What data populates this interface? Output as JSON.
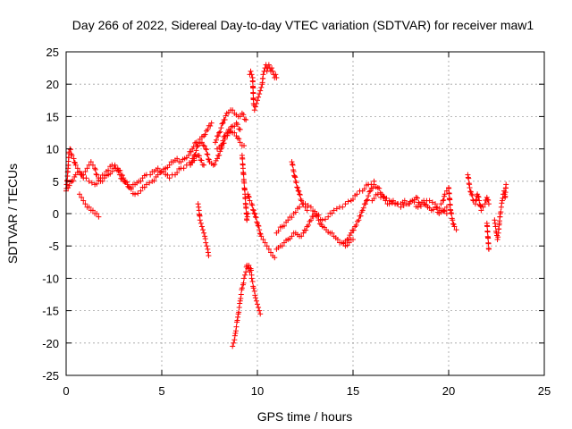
{
  "chart_data": {
    "type": "scatter",
    "title": "Day 266 of 2022, Sidereal Day-to-day VTEC variation (SDTVAR) for receiver maw1",
    "xlabel": "GPS time / hours",
    "ylabel": "SDTVAR / TECUs",
    "xlim": [
      0,
      25
    ],
    "ylim": [
      -25,
      25
    ],
    "xticks": [
      0,
      5,
      10,
      15,
      20,
      25
    ],
    "yticks": [
      -25,
      -20,
      -15,
      -10,
      -5,
      0,
      5,
      10,
      15,
      20,
      25
    ],
    "grid": true,
    "marker": "+",
    "series": [
      {
        "name": "maw1",
        "color": "#ff0000",
        "segments": [
          {
            "x": [
              0.0,
              0.05,
              0.1,
              0.15,
              0.2,
              0.3,
              0.4,
              0.5,
              0.6,
              0.7,
              0.8,
              0.9,
              1.0,
              1.1,
              1.2,
              1.3,
              1.4,
              1.5,
              1.6,
              1.7,
              1.8,
              1.9,
              2.0,
              2.2,
              2.4,
              2.6,
              2.8,
              3.0,
              3.2,
              3.4,
              3.6,
              3.8,
              4.0,
              4.2,
              4.4,
              4.6,
              4.8,
              5.0,
              5.2,
              5.4,
              5.6,
              5.8,
              6.0,
              6.2,
              6.4,
              6.6,
              6.8,
              7.0,
              7.2,
              7.4,
              7.6
            ],
            "y": [
              3.5,
              5.0,
              7.0,
              9.5,
              10.0,
              9.0,
              8.5,
              7.5,
              7.0,
              6.5,
              6.0,
              6.0,
              6.5,
              7.0,
              7.5,
              8.0,
              7.5,
              7.0,
              6.0,
              5.5,
              5.0,
              5.0,
              5.5,
              6.0,
              6.5,
              7.0,
              6.0,
              5.0,
              4.5,
              4.0,
              4.5,
              5.0,
              5.5,
              6.0,
              6.0,
              6.5,
              7.0,
              6.5,
              7.0,
              7.5,
              8.0,
              8.5,
              8.0,
              8.5,
              9.0,
              10.0,
              11.0,
              11.5,
              12.0,
              13.0,
              14.0
            ]
          },
          {
            "x": [
              0.1,
              0.3,
              0.5,
              0.7,
              0.9,
              1.2,
              1.5,
              1.8,
              2.1,
              2.4,
              2.7,
              3.0,
              3.3,
              3.6,
              3.9,
              4.2,
              4.5,
              4.8,
              5.1,
              5.4,
              5.7,
              6.0,
              6.3,
              6.6,
              6.9,
              7.2
            ],
            "y": [
              4.0,
              5.0,
              6.0,
              6.5,
              5.5,
              5.0,
              4.5,
              5.5,
              6.5,
              7.5,
              7.0,
              5.5,
              4.0,
              3.0,
              3.5,
              4.5,
              5.0,
              6.0,
              6.5,
              5.5,
              6.0,
              7.0,
              7.5,
              8.0,
              9.0,
              7.5
            ]
          },
          {
            "x": [
              6.5,
              6.7,
              6.9,
              7.1,
              7.3,
              7.5,
              7.7,
              7.9,
              8.1,
              8.3,
              8.5,
              8.7,
              8.9,
              9.1
            ],
            "y": [
              7.5,
              9.0,
              10.5,
              11.0,
              10.0,
              8.0,
              7.5,
              8.5,
              10.0,
              11.5,
              12.5,
              13.5,
              14.0,
              13.0
            ]
          },
          {
            "x": [
              7.8,
              8.0,
              8.2,
              8.4,
              8.6,
              8.8,
              9.0,
              9.2,
              9.4
            ],
            "y": [
              11.0,
              12.5,
              14.0,
              15.5,
              16.0,
              15.5,
              15.0,
              15.5,
              14.5
            ]
          },
          {
            "x": [
              7.9,
              8.1,
              8.3,
              8.5,
              8.7,
              8.9,
              9.1,
              9.3
            ],
            "y": [
              10.0,
              10.5,
              12.0,
              13.0,
              12.5,
              12.0,
              11.0,
              10.5
            ]
          },
          {
            "x": [
              9.2,
              9.25,
              9.3,
              9.35,
              9.4,
              9.45,
              9.5
            ],
            "y": [
              9.0,
              7.0,
              5.0,
              3.0,
              1.0,
              -1.0,
              0.0
            ]
          },
          {
            "x": [
              0.7,
              0.8,
              0.9,
              1.0,
              1.1,
              1.2,
              1.3,
              1.4,
              1.5,
              1.6,
              1.7
            ],
            "y": [
              3.0,
              2.5,
              2.0,
              1.5,
              1.0,
              1.0,
              0.5,
              0.5,
              0.0,
              0.0,
              -0.5
            ]
          },
          {
            "x": [
              6.9,
              6.95,
              7.0,
              7.05,
              7.1,
              7.15,
              7.2,
              7.25,
              7.3,
              7.35,
              7.4,
              7.45
            ],
            "y": [
              1.5,
              0.5,
              -1.0,
              -1.5,
              -2.0,
              -2.5,
              -3.0,
              -3.5,
              -4.5,
              -5.0,
              -5.5,
              -6.5
            ]
          },
          {
            "x": [
              8.7,
              8.75,
              8.8,
              8.85,
              8.9,
              8.95,
              9.0,
              9.05,
              9.1,
              9.15,
              9.2,
              9.25,
              9.3,
              9.35,
              9.4,
              9.45,
              9.5,
              9.55,
              9.6,
              9.65,
              9.7
            ],
            "y": [
              -20.5,
              -20.0,
              -19.5,
              -18.5,
              -17.5,
              -16.5,
              -15.5,
              -14.5,
              -13.5,
              -12.5,
              -11.5,
              -11.0,
              -10.0,
              -9.5,
              -9.0,
              -8.0,
              -8.5,
              -8.0,
              -9.0,
              -8.5,
              -9.5
            ]
          },
          {
            "x": [
              9.7,
              9.75,
              9.8,
              9.85,
              9.9,
              9.95,
              10.0,
              10.05,
              10.1,
              10.15
            ],
            "y": [
              -10.0,
              -10.5,
              -11.5,
              -12.0,
              -13.0,
              -13.5,
              -14.0,
              -14.5,
              -15.0,
              -15.5
            ]
          },
          {
            "x": [
              9.5,
              9.6,
              9.7,
              9.8,
              9.9,
              10.0,
              10.1,
              10.2,
              10.3,
              10.4,
              10.5,
              10.6,
              10.7,
              10.8,
              10.9
            ],
            "y": [
              3.0,
              2.0,
              1.5,
              0.5,
              -0.5,
              -1.5,
              -2.5,
              -3.5,
              -4.0,
              -4.5,
              -5.0,
              -5.5,
              -6.0,
              -6.5,
              -6.8
            ]
          },
          {
            "x": [
              9.6,
              9.65,
              9.7,
              9.75,
              9.8,
              9.85,
              9.9,
              9.95,
              10.0,
              10.05,
              10.1,
              10.15,
              10.2,
              10.25,
              10.3,
              10.35,
              10.4,
              10.45,
              10.5
            ],
            "y": [
              21.5,
              22.0,
              21.5,
              21.0,
              17.0,
              16.0,
              16.5,
              17.0,
              17.5,
              18.0,
              18.5,
              19.0,
              19.5,
              20.0,
              21.5,
              22.0,
              22.5,
              23.0,
              22.5
            ]
          },
          {
            "x": [
              10.5,
              10.55,
              10.6,
              10.65,
              10.7,
              10.75,
              10.8,
              10.85,
              10.9,
              10.95,
              11.0
            ],
            "y": [
              22.0,
              22.5,
              23.0,
              22.5,
              22.0,
              22.5,
              22.0,
              21.5,
              21.0,
              21.5,
              21.0
            ]
          },
          {
            "x": [
              11.0,
              11.2,
              11.4,
              11.6,
              11.8,
              12.0,
              12.2,
              12.4,
              12.6,
              12.8,
              13.0,
              13.2,
              13.4,
              13.6,
              13.8,
              14.0,
              14.2,
              14.4,
              14.6,
              14.8,
              15.0
            ],
            "y": [
              -5.5,
              -5.0,
              -4.5,
              -4.0,
              -3.5,
              -3.0,
              -3.5,
              -3.0,
              -2.0,
              -1.0,
              0.0,
              -1.0,
              -2.0,
              -2.5,
              -3.0,
              -3.5,
              -4.0,
              -4.5,
              -5.0,
              -4.5,
              -4.0
            ]
          },
          {
            "x": [
              11.0,
              11.3,
              11.6,
              11.9,
              12.2,
              12.5,
              12.8,
              13.1,
              13.4,
              13.7,
              14.0,
              14.3,
              14.6,
              14.9,
              15.2,
              15.5,
              15.8,
              16.1
            ],
            "y": [
              -3.0,
              -2.0,
              -1.0,
              0.0,
              1.0,
              1.5,
              1.0,
              0.0,
              -1.0,
              -0.5,
              0.5,
              1.0,
              1.5,
              2.0,
              3.0,
              3.5,
              4.5,
              5.0
            ]
          },
          {
            "x": [
              11.8,
              11.9,
              12.0,
              12.1,
              12.2,
              12.3,
              12.4,
              12.5,
              12.6
            ],
            "y": [
              8.0,
              6.5,
              5.0,
              4.0,
              3.0,
              2.0,
              1.5,
              1.0,
              0.5
            ]
          },
          {
            "x": [
              14.5,
              14.7,
              14.9,
              15.1,
              15.3,
              15.5,
              15.7,
              15.9,
              16.1,
              16.3,
              16.5,
              16.7,
              16.9,
              17.1,
              17.3,
              17.5,
              17.7,
              17.9,
              18.1,
              18.3,
              18.5,
              18.7,
              18.9,
              19.1,
              19.3,
              19.5,
              19.7,
              19.9
            ],
            "y": [
              -4.5,
              -4.0,
              -3.0,
              -2.0,
              -1.0,
              0.5,
              2.0,
              3.5,
              4.5,
              4.0,
              3.0,
              2.0,
              1.5,
              2.0,
              1.5,
              1.5,
              2.0,
              1.5,
              2.0,
              2.5,
              1.5,
              2.0,
              1.0,
              0.5,
              1.0,
              0.0,
              0.5,
              1.0
            ]
          },
          {
            "x": [
              16.0,
              16.3,
              16.6,
              16.9,
              17.2,
              17.5,
              17.8,
              18.1,
              18.4,
              18.7,
              19.0,
              19.3,
              19.6,
              19.9
            ],
            "y": [
              2.0,
              3.0,
              2.5,
              2.0,
              1.5,
              1.0,
              1.5,
              2.0,
              1.0,
              1.5,
              2.0,
              1.5,
              0.5,
              0.0
            ]
          },
          {
            "x": [
              19.6,
              19.7,
              19.8,
              19.9,
              20.0,
              20.1,
              20.2,
              20.3,
              20.4
            ],
            "y": [
              1.5,
              2.0,
              3.0,
              3.5,
              4.0,
              0.5,
              -1.0,
              -2.0,
              -2.5
            ]
          },
          {
            "x": [
              21.0,
              21.1,
              21.2,
              21.3,
              21.4,
              21.5,
              21.6,
              21.7,
              21.8,
              21.9,
              22.0,
              22.1
            ],
            "y": [
              6.0,
              4.0,
              3.0,
              2.0,
              1.5,
              3.0,
              2.0,
              0.5,
              1.0,
              1.5,
              2.5,
              1.5
            ]
          },
          {
            "x": [
              22.0,
              22.1
            ],
            "y": [
              -1.5,
              -5.5
            ]
          },
          {
            "x": [
              22.4,
              22.45,
              22.5,
              22.55,
              22.6,
              22.65,
              22.7,
              22.75,
              22.8,
              22.85,
              22.9,
              22.95,
              23.0
            ],
            "y": [
              -1.0,
              -2.0,
              -3.0,
              -4.0,
              -3.0,
              -1.5,
              0.0,
              1.0,
              2.0,
              3.0,
              3.5,
              2.5,
              4.5
            ]
          }
        ]
      }
    ]
  }
}
